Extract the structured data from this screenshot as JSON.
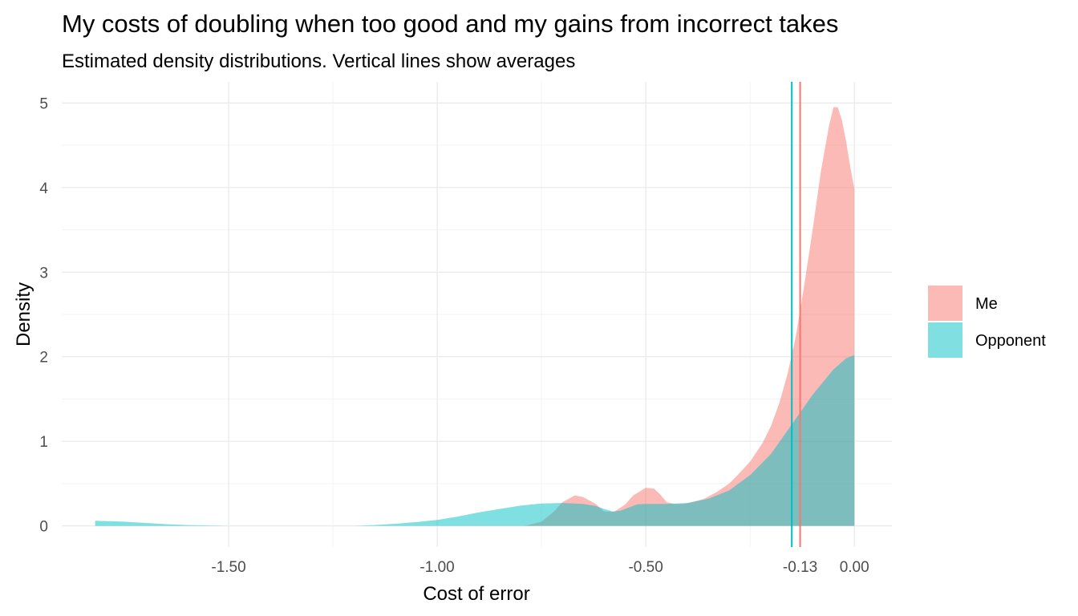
{
  "chart_data": {
    "type": "area",
    "title": "My costs of doubling when too good and my gains from incorrect takes",
    "subtitle": "Estimated density distributions. Vertical lines show averages",
    "xlabel": "Cost of error",
    "ylabel": "Density",
    "xlim": [
      -1.9,
      0.09
    ],
    "ylim": [
      -0.25,
      5.25
    ],
    "x_ticks": [
      -1.5,
      -1.0,
      -0.5,
      -0.13,
      0.0
    ],
    "x_tick_labels": [
      "-1.50",
      "-1.00",
      "-0.50",
      "-0.13",
      "0.00"
    ],
    "y_ticks": [
      0,
      1,
      2,
      3,
      4,
      5
    ],
    "y_tick_labels": [
      "0",
      "1",
      "2",
      "3",
      "4",
      "5"
    ],
    "grid": true,
    "legend_position": "right",
    "series": [
      {
        "name": "Me",
        "color": "#F8766D",
        "mean": -0.13,
        "x": [
          -0.79,
          -0.75,
          -0.72,
          -0.7,
          -0.67,
          -0.65,
          -0.62,
          -0.6,
          -0.575,
          -0.55,
          -0.53,
          -0.5,
          -0.48,
          -0.465,
          -0.45,
          -0.43,
          -0.41,
          -0.39,
          -0.36,
          -0.33,
          -0.3,
          -0.28,
          -0.25,
          -0.22,
          -0.2,
          -0.18,
          -0.16,
          -0.14,
          -0.12,
          -0.1,
          -0.08,
          -0.06,
          -0.05,
          -0.04,
          -0.03,
          -0.02,
          -0.01,
          0.0
        ],
        "y": [
          0.0,
          0.05,
          0.17,
          0.28,
          0.36,
          0.34,
          0.26,
          0.17,
          0.17,
          0.25,
          0.36,
          0.45,
          0.44,
          0.37,
          0.28,
          0.26,
          0.26,
          0.28,
          0.32,
          0.4,
          0.5,
          0.6,
          0.76,
          0.98,
          1.18,
          1.45,
          1.8,
          2.25,
          2.85,
          3.5,
          4.2,
          4.75,
          4.95,
          4.95,
          4.8,
          4.55,
          4.25,
          3.98
        ]
      },
      {
        "name": "Opponent",
        "color": "#00BFC4",
        "mean": -0.15,
        "x": [
          -1.82,
          -1.75,
          -1.7,
          -1.65,
          -1.6,
          -1.55,
          -1.5,
          -1.45,
          -1.4,
          -1.35,
          -1.3,
          -1.25,
          -1.2,
          -1.15,
          -1.1,
          -1.05,
          -1.0,
          -0.95,
          -0.9,
          -0.85,
          -0.8,
          -0.75,
          -0.7,
          -0.65,
          -0.62,
          -0.6,
          -0.58,
          -0.56,
          -0.54,
          -0.52,
          -0.5,
          -0.45,
          -0.4,
          -0.35,
          -0.3,
          -0.25,
          -0.2,
          -0.15,
          -0.1,
          -0.05,
          -0.02,
          0.0
        ],
        "y": [
          0.06,
          0.05,
          0.035,
          0.02,
          0.01,
          0.005,
          0.0,
          0.0,
          0.0,
          0.0,
          0.0,
          0.0,
          0.0,
          0.01,
          0.025,
          0.045,
          0.07,
          0.11,
          0.16,
          0.2,
          0.24,
          0.265,
          0.27,
          0.26,
          0.235,
          0.2,
          0.17,
          0.18,
          0.22,
          0.255,
          0.26,
          0.26,
          0.27,
          0.32,
          0.42,
          0.6,
          0.85,
          1.2,
          1.55,
          1.85,
          1.98,
          2.02
        ]
      }
    ]
  }
}
